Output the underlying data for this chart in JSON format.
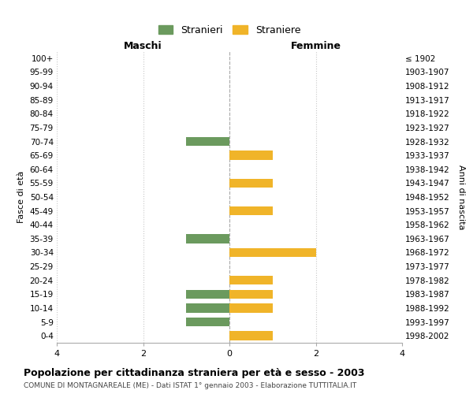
{
  "age_groups": [
    "0-4",
    "5-9",
    "10-14",
    "15-19",
    "20-24",
    "25-29",
    "30-34",
    "35-39",
    "40-44",
    "45-49",
    "50-54",
    "55-59",
    "60-64",
    "65-69",
    "70-74",
    "75-79",
    "80-84",
    "85-89",
    "90-94",
    "95-99",
    "100+"
  ],
  "birth_years": [
    "1998-2002",
    "1993-1997",
    "1988-1992",
    "1983-1987",
    "1978-1982",
    "1973-1977",
    "1968-1972",
    "1963-1967",
    "1958-1962",
    "1953-1957",
    "1948-1952",
    "1943-1947",
    "1938-1942",
    "1933-1937",
    "1928-1932",
    "1923-1927",
    "1918-1922",
    "1913-1917",
    "1908-1912",
    "1903-1907",
    "≤ 1902"
  ],
  "males": [
    0,
    -1,
    -1,
    -1,
    0,
    0,
    0,
    -1,
    0,
    0,
    0,
    0,
    0,
    0,
    -1,
    0,
    0,
    0,
    0,
    0,
    0
  ],
  "females": [
    1,
    0,
    1,
    1,
    1,
    0,
    2,
    0,
    0,
    1,
    0,
    1,
    0,
    1,
    0,
    0,
    0,
    0,
    0,
    0,
    0
  ],
  "male_color": "#6b9a5e",
  "female_color": "#f0b429",
  "title": "Popolazione per cittadinanza straniera per età e sesso - 2003",
  "subtitle": "COMUNE DI MONTAGNAREALE (ME) - Dati ISTAT 1° gennaio 2003 - Elaborazione TUTTITALIA.IT",
  "ylabel_left": "Fasce di età",
  "ylabel_right": "Anni di nascita",
  "xlabel_left": "Maschi",
  "xlabel_right": "Femmine",
  "legend_male": "Stranieri",
  "legend_female": "Straniere",
  "xlim": [
    -4,
    4
  ],
  "xticks": [
    -4,
    -2,
    0,
    2,
    4
  ],
  "xticklabels": [
    "4",
    "2",
    "0",
    "2",
    "4"
  ],
  "background_color": "#ffffff",
  "grid_color": "#c8c8c8"
}
